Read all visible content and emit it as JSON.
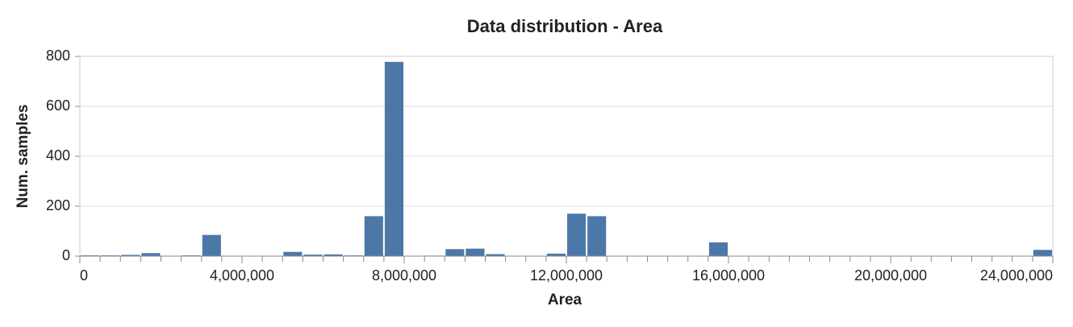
{
  "chart_data": {
    "type": "histogram",
    "title": "Data distribution - Area",
    "x_label": "Area",
    "y_label": "Num. samples",
    "bins": [
      0,
      500000,
      1000000,
      1500000,
      2000000,
      2500000,
      3000000,
      3500000,
      4000000,
      4500000,
      5000000,
      5500000,
      6000000,
      6500000,
      7000000,
      7500000,
      8000000,
      8500000,
      9000000,
      9500000,
      10000000,
      10500000,
      11000000,
      11500000,
      12000000,
      12500000,
      13000000,
      13500000,
      14000000,
      14500000,
      15000000,
      15500000,
      16000000,
      16500000,
      17000000,
      17500000,
      18000000,
      18500000,
      19000000,
      19500000,
      20000000,
      20500000,
      21000000,
      21500000,
      22000000,
      22500000,
      23000000,
      23500000,
      24000000
    ],
    "values": [
      3,
      3,
      5,
      12,
      0,
      3,
      85,
      0,
      0,
      0,
      17,
      6,
      7,
      3,
      160,
      778,
      0,
      2,
      28,
      30,
      8,
      0,
      0,
      10,
      170,
      160,
      0,
      0,
      0,
      0,
      0,
      55,
      0,
      0,
      0,
      0,
      0,
      0,
      0,
      0,
      0,
      0,
      0,
      0,
      0,
      0,
      0,
      25
    ],
    "color": "#4c78a8",
    "xlim": [
      0,
      24000000
    ],
    "xticks": [
      0,
      {
        "value": 4000000,
        "label": "4,000,000"
      },
      {
        "value": 8000000,
        "label": "8,000,000"
      },
      {
        "value": 12000000,
        "label": "12,000,000"
      },
      {
        "value": 16000000,
        "label": "16,000,000"
      },
      {
        "value": 20000000,
        "label": "20,000,000"
      },
      {
        "value": 24000000,
        "label": "24,000,000"
      }
    ],
    "ylim": [
      0,
      800
    ],
    "yticks": [
      0,
      200,
      400,
      600,
      800
    ],
    "grid": true
  }
}
